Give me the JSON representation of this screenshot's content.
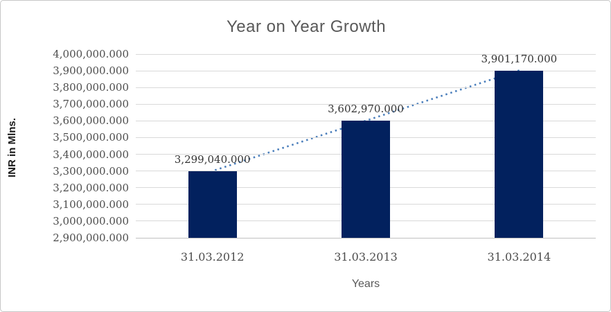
{
  "chart_data": {
    "type": "bar",
    "title": "Year on Year Growth",
    "xlabel": "Years",
    "ylabel": "INR in Mlns.",
    "categories": [
      "31.03.2012",
      "31.03.2013",
      "31.03.2014"
    ],
    "values": [
      3299040,
      3602970,
      3901170
    ],
    "data_labels": [
      "3,299,040.000",
      "3,602,970.000",
      "3,901,170.000"
    ],
    "y_ticks": [
      {
        "value": 4000000,
        "label": "4,000,000.000"
      },
      {
        "value": 3900000,
        "label": "3,900,000.000"
      },
      {
        "value": 3800000,
        "label": "3,800,000.000"
      },
      {
        "value": 3700000,
        "label": "3,700,000.000"
      },
      {
        "value": 3600000,
        "label": "3,600,000.000"
      },
      {
        "value": 3500000,
        "label": "3,500,000.000"
      },
      {
        "value": 3400000,
        "label": "3,400,000.000"
      },
      {
        "value": 3300000,
        "label": "3,300,000.000"
      },
      {
        "value": 3200000,
        "label": "3,200,000.000"
      },
      {
        "value": 3100000,
        "label": "3,100,000.000"
      },
      {
        "value": 3000000,
        "label": "3,000,000.000"
      },
      {
        "value": 2900000,
        "label": "2,900,000.000"
      }
    ],
    "ylim": [
      2900000,
      4000000
    ],
    "grid": true,
    "legend": "none",
    "trendline": {
      "type": "linear",
      "style": "dotted"
    },
    "colors": {
      "bar": "#02215e",
      "trendline": "#4a7ebb",
      "gridline": "#d9d9d9",
      "axis_line": "#c0c0c0",
      "title": "#595959",
      "tick_label": "#4d4d4d",
      "data_label": "#333333"
    }
  }
}
